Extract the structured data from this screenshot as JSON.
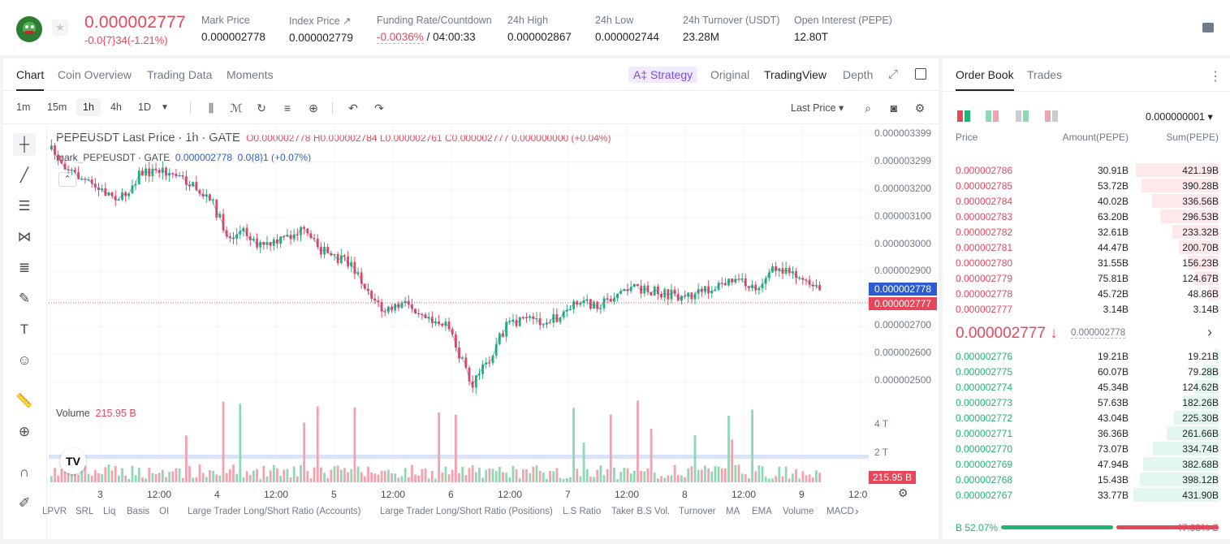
{
  "header": {
    "last_price": "0.000002777",
    "change": "-0.0{7}34(-1.21%)",
    "stats": [
      {
        "label": "Mark Price",
        "value": "0.000002778"
      },
      {
        "label": "Index Price ↗",
        "value": "0.000002779"
      },
      {
        "label": "Funding Rate/Countdown",
        "value_neg": "-0.0036%",
        "value": "/ 04:00:33"
      },
      {
        "label": "24h High",
        "value": "0.000002867"
      },
      {
        "label": "24h Low",
        "value": "0.000002744"
      },
      {
        "label": "24h Turnover (USDT)",
        "value": "23.28M"
      },
      {
        "label": "Open Interest (PEPE)",
        "value": "12.80T"
      }
    ]
  },
  "chart_tabs": [
    "Chart",
    "Coin Overview",
    "Trading Data",
    "Moments"
  ],
  "view_tabs": {
    "strategy": "A‡ Strategy",
    "original": "Original",
    "tradingview": "TradingView",
    "depth": "Depth"
  },
  "timeframes": [
    "1m",
    "15m",
    "1h",
    "4h",
    "1D"
  ],
  "price_type": "Last Price ▾",
  "legend": {
    "title": "PEPEUSDT Last Price · 1h · GATE",
    "o": "O0.000002778",
    "h": "H0.000002784",
    "l": "L0.000002761",
    "c": "C0.000002777",
    "chg": "0.000000000 (+0.04%)",
    "mark_name": "mark_PEPEUSDT · GATE",
    "mark_val": "0.000002778",
    "mark_chg": "0.0{8}1  (+0.07%)"
  },
  "price_axis": [
    "0.000003399",
    "0.000003299",
    "0.000003200",
    "0.000003100",
    "0.000003000",
    "0.000002900",
    "0.000002800",
    "0.000002700",
    "0.000002600",
    "0.000002500"
  ],
  "price_tags": {
    "mark": "0.000002778",
    "last": "0.000002777"
  },
  "volume": {
    "label": "Volume",
    "value": "215.95 B",
    "axis": [
      "4 T",
      "2 T"
    ],
    "tag": "215.95 B"
  },
  "time_axis": [
    "3",
    "12:00",
    "4",
    "12:00",
    "5",
    "12:00",
    "6",
    "12:00",
    "7",
    "12:00",
    "8",
    "12:00",
    "9",
    "12:0"
  ],
  "indicators": [
    "LPVR",
    "SRL",
    "Liq",
    "Basis",
    "OI",
    "Large Trader Long/Short Ratio (Accounts)",
    "Large Trader Long/Short Ratio (Positions)",
    "L.S Ratio",
    "Taker B.S Vol.",
    "Turnover",
    "MA",
    "EMA",
    "Volume",
    "MACD"
  ],
  "book": {
    "tabs": [
      "Order Book",
      "Trades"
    ],
    "precision": "0.000000001 ▾",
    "headers": {
      "price": "Price",
      "amount": "Amount(PEPE)",
      "sum": "Sum(PEPE)"
    },
    "asks": [
      {
        "price": "0.000002786",
        "amount": "30.91B",
        "sum": "421.19B"
      },
      {
        "price": "0.000002785",
        "amount": "53.72B",
        "sum": "390.28B"
      },
      {
        "price": "0.000002784",
        "amount": "40.02B",
        "sum": "336.56B"
      },
      {
        "price": "0.000002783",
        "amount": "63.20B",
        "sum": "296.53B"
      },
      {
        "price": "0.000002782",
        "amount": "32.61B",
        "sum": "233.32B"
      },
      {
        "price": "0.000002781",
        "amount": "44.47B",
        "sum": "200.70B"
      },
      {
        "price": "0.000002780",
        "amount": "31.55B",
        "sum": "156.23B"
      },
      {
        "price": "0.000002779",
        "amount": "75.81B",
        "sum": "124.67B"
      },
      {
        "price": "0.000002778",
        "amount": "45.72B",
        "sum": "48.86B"
      },
      {
        "price": "0.000002777",
        "amount": "3.14B",
        "sum": "3.14B"
      }
    ],
    "mid": {
      "price": "0.000002777 ↓",
      "mark": "0.000002778"
    },
    "bids": [
      {
        "price": "0.000002776",
        "amount": "19.21B",
        "sum": "19.21B"
      },
      {
        "price": "0.000002775",
        "amount": "60.07B",
        "sum": "79.28B"
      },
      {
        "price": "0.000002774",
        "amount": "45.34B",
        "sum": "124.62B"
      },
      {
        "price": "0.000002773",
        "amount": "57.63B",
        "sum": "182.26B"
      },
      {
        "price": "0.000002772",
        "amount": "43.04B",
        "sum": "225.30B"
      },
      {
        "price": "0.000002771",
        "amount": "36.36B",
        "sum": "261.66B"
      },
      {
        "price": "0.000002770",
        "amount": "73.07B",
        "sum": "334.74B"
      },
      {
        "price": "0.000002769",
        "amount": "47.94B",
        "sum": "382.68B"
      },
      {
        "price": "0.000002768",
        "amount": "15.43B",
        "sum": "398.12B"
      },
      {
        "price": "0.000002767",
        "amount": "33.77B",
        "sum": "431.90B"
      }
    ],
    "buy_ratio": "B 52.07%",
    "sell_ratio": "47.93% S",
    "buy_fraction": 0.5207
  },
  "colors": {
    "up": "#22b473",
    "down": "#e8475b",
    "up_light": "#8fd8b5",
    "down_light": "#f3a3ae",
    "accent_blue": "#2c5bd3"
  }
}
